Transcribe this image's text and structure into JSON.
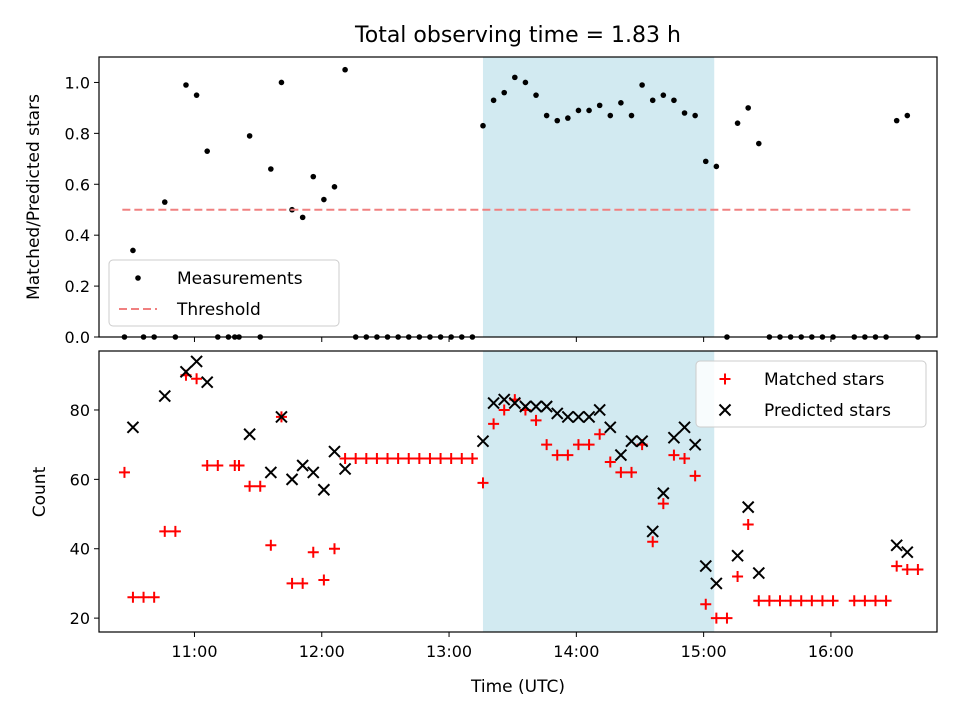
{
  "chart_data": [
    {
      "type": "scatter",
      "title": "Total observing time = 1.83 h",
      "xlabel": "",
      "ylabel": "Matched/Predicted stars",
      "xlim": [
        "10:15",
        "16:50"
      ],
      "ylim": [
        0,
        1.1
      ],
      "yticks": [
        "0.0",
        "0.2",
        "0.4",
        "0.6",
        "0.8",
        "1.0"
      ],
      "highlight_span": {
        "start": "13:16",
        "end": "15:05",
        "color": "#add8e6"
      },
      "legend": {
        "position": "lower-left",
        "entries": [
          "Measurements",
          "Threshold"
        ]
      },
      "series": [
        {
          "name": "Measurements",
          "marker": "dot",
          "color": "#000000",
          "points": [
            [
              "10:27",
              0.0
            ],
            [
              "10:31",
              0.34
            ],
            [
              "10:36",
              0.0
            ],
            [
              "10:41",
              0.0
            ],
            [
              "10:46",
              0.53
            ],
            [
              "10:51",
              0.0
            ],
            [
              "10:56",
              0.99
            ],
            [
              "11:01",
              0.95
            ],
            [
              "11:06",
              0.73
            ],
            [
              "11:11",
              0.0
            ],
            [
              "11:16",
              0.0
            ],
            [
              "11:19",
              0.0
            ],
            [
              "11:21",
              0.0
            ],
            [
              "11:26",
              0.79
            ],
            [
              "11:31",
              0.0
            ],
            [
              "11:36",
              0.66
            ],
            [
              "11:41",
              1.0
            ],
            [
              "11:46",
              0.5
            ],
            [
              "11:51",
              0.47
            ],
            [
              "11:56",
              0.63
            ],
            [
              "12:01",
              0.54
            ],
            [
              "12:06",
              0.59
            ],
            [
              "12:11",
              1.05
            ],
            [
              "12:16",
              0.0
            ],
            [
              "12:21",
              0.0
            ],
            [
              "12:26",
              0.0
            ],
            [
              "12:31",
              0.0
            ],
            [
              "12:36",
              0.0
            ],
            [
              "12:41",
              0.0
            ],
            [
              "12:46",
              0.0
            ],
            [
              "12:51",
              0.0
            ],
            [
              "12:56",
              0.0
            ],
            [
              "13:01",
              0.0
            ],
            [
              "13:06",
              0.0
            ],
            [
              "13:11",
              0.0
            ],
            [
              "13:16",
              0.83
            ],
            [
              "13:21",
              0.93
            ],
            [
              "13:26",
              0.96
            ],
            [
              "13:31",
              1.02
            ],
            [
              "13:36",
              1.0
            ],
            [
              "13:41",
              0.95
            ],
            [
              "13:46",
              0.87
            ],
            [
              "13:51",
              0.85
            ],
            [
              "13:56",
              0.86
            ],
            [
              "14:01",
              0.89
            ],
            [
              "14:06",
              0.89
            ],
            [
              "14:11",
              0.91
            ],
            [
              "14:16",
              0.87
            ],
            [
              "14:21",
              0.92
            ],
            [
              "14:26",
              0.87
            ],
            [
              "14:31",
              0.99
            ],
            [
              "14:36",
              0.93
            ],
            [
              "14:41",
              0.95
            ],
            [
              "14:46",
              0.93
            ],
            [
              "14:51",
              0.88
            ],
            [
              "14:56",
              0.87
            ],
            [
              "15:01",
              0.69
            ],
            [
              "15:06",
              0.67
            ],
            [
              "15:11",
              0.0
            ],
            [
              "15:16",
              0.84
            ],
            [
              "15:21",
              0.9
            ],
            [
              "15:26",
              0.76
            ],
            [
              "15:31",
              0.0
            ],
            [
              "15:36",
              0.0
            ],
            [
              "15:41",
              0.0
            ],
            [
              "15:46",
              0.0
            ],
            [
              "15:51",
              0.0
            ],
            [
              "15:56",
              0.0
            ],
            [
              "16:01",
              0.0
            ],
            [
              "16:11",
              0.0
            ],
            [
              "16:16",
              0.0
            ],
            [
              "16:21",
              0.0
            ],
            [
              "16:26",
              0.0
            ],
            [
              "16:31",
              0.85
            ],
            [
              "16:36",
              0.87
            ],
            [
              "16:41",
              0.0
            ]
          ]
        },
        {
          "name": "Threshold",
          "marker": "dashed-line",
          "color": "#f08080",
          "points": [
            [
              "10:26",
              0.5
            ],
            [
              "16:39",
              0.5
            ]
          ]
        }
      ]
    },
    {
      "type": "scatter",
      "title": "",
      "xlabel": "Time (UTC)",
      "ylabel": "Count",
      "xlim": [
        "10:15",
        "16:50"
      ],
      "ylim": [
        16,
        97
      ],
      "xticks": [
        "11:00",
        "12:00",
        "13:00",
        "14:00",
        "15:00",
        "16:00"
      ],
      "yticks": [
        "20",
        "40",
        "60",
        "80"
      ],
      "highlight_span": {
        "start": "13:16",
        "end": "15:05",
        "color": "#add8e6"
      },
      "legend": {
        "position": "top-right",
        "entries": [
          "Matched stars",
          "Predicted stars"
        ]
      },
      "series": [
        {
          "name": "Matched stars",
          "marker": "plus",
          "color": "#ff0000",
          "points": [
            [
              "10:27",
              62
            ],
            [
              "10:31",
              26
            ],
            [
              "10:36",
              26
            ],
            [
              "10:41",
              26
            ],
            [
              "10:46",
              45
            ],
            [
              "10:51",
              45
            ],
            [
              "10:56",
              90
            ],
            [
              "11:01",
              89
            ],
            [
              "11:06",
              64
            ],
            [
              "11:11",
              64
            ],
            [
              "11:19",
              64
            ],
            [
              "11:21",
              64
            ],
            [
              "11:26",
              58
            ],
            [
              "11:31",
              58
            ],
            [
              "11:36",
              41
            ],
            [
              "11:41",
              78
            ],
            [
              "11:46",
              30
            ],
            [
              "11:51",
              30
            ],
            [
              "11:56",
              39
            ],
            [
              "12:01",
              31
            ],
            [
              "12:06",
              40
            ],
            [
              "12:11",
              66
            ],
            [
              "12:16",
              66
            ],
            [
              "12:21",
              66
            ],
            [
              "12:26",
              66
            ],
            [
              "12:31",
              66
            ],
            [
              "12:36",
              66
            ],
            [
              "12:41",
              66
            ],
            [
              "12:46",
              66
            ],
            [
              "12:51",
              66
            ],
            [
              "12:56",
              66
            ],
            [
              "13:01",
              66
            ],
            [
              "13:06",
              66
            ],
            [
              "13:11",
              66
            ],
            [
              "13:16",
              59
            ],
            [
              "13:21",
              76
            ],
            [
              "13:26",
              80
            ],
            [
              "13:31",
              83
            ],
            [
              "13:36",
              80
            ],
            [
              "13:41",
              77
            ],
            [
              "13:46",
              70
            ],
            [
              "13:51",
              67
            ],
            [
              "13:56",
              67
            ],
            [
              "14:01",
              70
            ],
            [
              "14:06",
              70
            ],
            [
              "14:11",
              73
            ],
            [
              "14:16",
              65
            ],
            [
              "14:21",
              62
            ],
            [
              "14:26",
              62
            ],
            [
              "14:31",
              70
            ],
            [
              "14:36",
              42
            ],
            [
              "14:41",
              53
            ],
            [
              "14:46",
              67
            ],
            [
              "14:51",
              66
            ],
            [
              "14:56",
              61
            ],
            [
              "15:01",
              24
            ],
            [
              "15:06",
              20
            ],
            [
              "15:11",
              20
            ],
            [
              "15:16",
              32
            ],
            [
              "15:21",
              47
            ],
            [
              "15:26",
              25
            ],
            [
              "15:31",
              25
            ],
            [
              "15:36",
              25
            ],
            [
              "15:41",
              25
            ],
            [
              "15:46",
              25
            ],
            [
              "15:51",
              25
            ],
            [
              "15:56",
              25
            ],
            [
              "16:01",
              25
            ],
            [
              "16:11",
              25
            ],
            [
              "16:16",
              25
            ],
            [
              "16:21",
              25
            ],
            [
              "16:26",
              25
            ],
            [
              "16:31",
              35
            ],
            [
              "16:36",
              34
            ],
            [
              "16:41",
              34
            ]
          ]
        },
        {
          "name": "Predicted stars",
          "marker": "x",
          "color": "#000000",
          "points": [
            [
              "10:31",
              75
            ],
            [
              "10:46",
              84
            ],
            [
              "10:56",
              91
            ],
            [
              "11:01",
              94
            ],
            [
              "11:06",
              88
            ],
            [
              "11:26",
              73
            ],
            [
              "11:36",
              62
            ],
            [
              "11:41",
              78
            ],
            [
              "11:46",
              60
            ],
            [
              "11:51",
              64
            ],
            [
              "11:56",
              62
            ],
            [
              "12:01",
              57
            ],
            [
              "12:06",
              68
            ],
            [
              "12:11",
              63
            ],
            [
              "13:16",
              71
            ],
            [
              "13:21",
              82
            ],
            [
              "13:26",
              83
            ],
            [
              "13:31",
              82
            ],
            [
              "13:36",
              81
            ],
            [
              "13:41",
              81
            ],
            [
              "13:46",
              81
            ],
            [
              "13:51",
              79
            ],
            [
              "13:56",
              78
            ],
            [
              "14:01",
              78
            ],
            [
              "14:06",
              78
            ],
            [
              "14:11",
              80
            ],
            [
              "14:16",
              75
            ],
            [
              "14:21",
              67
            ],
            [
              "14:26",
              71
            ],
            [
              "14:31",
              71
            ],
            [
              "14:36",
              45
            ],
            [
              "14:41",
              56
            ],
            [
              "14:46",
              72
            ],
            [
              "14:51",
              75
            ],
            [
              "14:56",
              70
            ],
            [
              "15:01",
              35
            ],
            [
              "15:06",
              30
            ],
            [
              "15:16",
              38
            ],
            [
              "15:21",
              52
            ],
            [
              "15:26",
              33
            ],
            [
              "16:31",
              41
            ],
            [
              "16:36",
              39
            ]
          ]
        }
      ]
    }
  ]
}
